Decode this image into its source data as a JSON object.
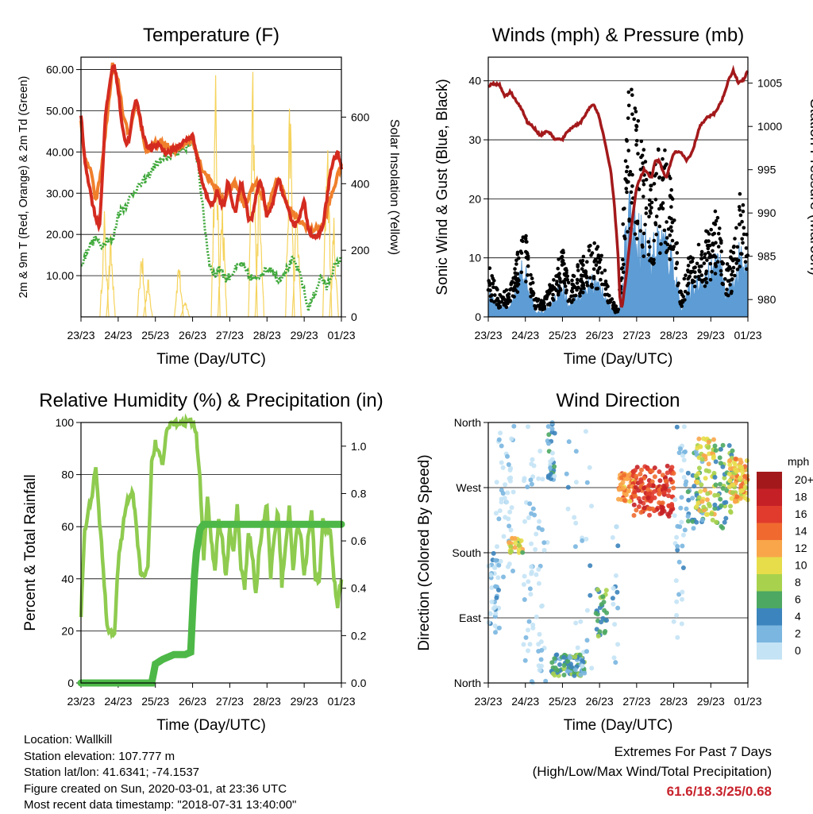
{
  "chart_data": [
    {
      "type": "line",
      "title": "Temperature (F)",
      "xlabel": "Time (Day/UTC)",
      "ylabel": "2m & 9m T (Red, Orange) & 2m Td (Green)",
      "y2label": "Solar Insolation (Yellow)",
      "x_ticks": [
        "23/23",
        "24/23",
        "25/23",
        "26/23",
        "27/23",
        "28/23",
        "29/23",
        "01/23"
      ],
      "ylim": [
        0,
        63
      ],
      "y_ticks": [
        "10.00",
        "20.00",
        "30.00",
        "40.00",
        "50.00",
        "60.00"
      ],
      "y_tick_values": [
        10,
        20,
        30,
        40,
        50,
        60
      ],
      "y2lim": [
        0,
        780
      ],
      "y2_ticks": [
        "0",
        "200",
        "400",
        "600"
      ],
      "y2_tick_values": [
        0,
        200,
        400,
        600
      ],
      "grid": true,
      "colors": {
        "t2m": "#d42b20",
        "t9m": "#f07f2c",
        "td": "#3ea83a",
        "solar": "#f5d35c"
      },
      "series": [
        {
          "key": "t9m",
          "x": [
            0,
            0.1,
            0.25,
            0.4,
            0.55,
            0.7,
            0.85,
            1.0,
            1.15,
            1.3,
            1.5,
            1.75,
            2.0,
            2.25,
            2.5,
            2.75,
            3.0,
            3.25,
            3.5,
            3.65,
            3.85,
            4.1,
            4.4,
            4.7,
            5.0,
            5.3,
            5.6,
            5.9,
            6.2,
            6.5,
            6.75,
            7.0
          ],
          "values": [
            48,
            38,
            36,
            28,
            36,
            48,
            61,
            57,
            48,
            44,
            52,
            40,
            42,
            42,
            40,
            42,
            43,
            36,
            33,
            31,
            28,
            33,
            27,
            33,
            26,
            34,
            26,
            23,
            21,
            22,
            30,
            37
          ]
        },
        {
          "key": "t2m",
          "x": [
            0,
            0.1,
            0.2,
            0.3,
            0.4,
            0.5,
            0.55,
            0.65,
            0.75,
            0.85,
            0.92,
            1.0,
            1.1,
            1.2,
            1.3,
            1.4,
            1.5,
            1.65,
            1.8,
            1.95,
            2.1,
            2.25,
            2.4,
            2.55,
            2.7,
            2.85,
            3.0,
            3.1,
            3.25,
            3.35,
            3.45,
            3.55,
            3.65,
            3.75,
            3.85,
            3.95,
            4.05,
            4.15,
            4.3,
            4.4,
            4.5,
            4.6,
            4.7,
            4.8,
            4.9,
            5.0,
            5.1,
            5.2,
            5.3,
            5.45,
            5.6,
            5.75,
            5.9,
            6.0,
            6.1,
            6.2,
            6.35,
            6.5,
            6.6,
            6.7,
            6.8,
            6.9,
            7.0
          ],
          "values": [
            49,
            38,
            33,
            28,
            24,
            22,
            30,
            48,
            55,
            61,
            60,
            55,
            47,
            42,
            43,
            50,
            53,
            45,
            41,
            41,
            42,
            40,
            40,
            41,
            42,
            43,
            44,
            40,
            33,
            30,
            28,
            27,
            31,
            28,
            27,
            33,
            28,
            25,
            33,
            29,
            24,
            24,
            29,
            33,
            30,
            24,
            26,
            29,
            34,
            29,
            25,
            22,
            25,
            28,
            22,
            20,
            19,
            22,
            28,
            35,
            38,
            40,
            36
          ]
        },
        {
          "key": "td",
          "x": [
            0,
            0.2,
            0.4,
            0.55,
            0.7,
            0.85,
            1.0,
            1.2,
            1.4,
            1.6,
            1.8,
            2.0,
            2.2,
            2.4,
            2.6,
            2.8,
            3.0,
            3.15,
            3.3,
            3.45,
            3.6,
            3.75,
            3.9,
            4.1,
            4.3,
            4.5,
            4.7,
            4.9,
            5.1,
            5.3,
            5.5,
            5.7,
            5.9,
            6.1,
            6.3,
            6.45,
            6.6,
            6.8,
            7.0
          ],
          "values": [
            12,
            17,
            19,
            17,
            19,
            18,
            25,
            27,
            30,
            32,
            34,
            37,
            38,
            39,
            40,
            41,
            43,
            37,
            24,
            13,
            10,
            12,
            9,
            11,
            13,
            10,
            9,
            11,
            12,
            9,
            11,
            14,
            10,
            2,
            6,
            10,
            7,
            12,
            14
          ]
        }
      ],
      "solar_peaks": [
        {
          "x": 0.63,
          "v": 330
        },
        {
          "x": 0.8,
          "v": 255
        },
        {
          "x": 1.63,
          "v": 235
        },
        {
          "x": 1.8,
          "v": 130
        },
        {
          "x": 2.63,
          "v": 195
        },
        {
          "x": 2.8,
          "v": 60
        },
        {
          "x": 3.62,
          "v": 750
        },
        {
          "x": 3.8,
          "v": 400
        },
        {
          "x": 4.62,
          "v": 770
        },
        {
          "x": 4.8,
          "v": 500
        },
        {
          "x": 5.62,
          "v": 740
        },
        {
          "x": 5.8,
          "v": 380
        },
        {
          "x": 6.62,
          "v": 650
        },
        {
          "x": 6.8,
          "v": 320
        }
      ]
    },
    {
      "type": "line",
      "title": "Winds (mph) & Pressure (mb)",
      "xlabel": "Time (Day/UTC)",
      "ylabel": "Sonic Wind & Gust (Blue, Black)",
      "y2label": "Station Pressure (Maroon)",
      "x_ticks": [
        "23/23",
        "24/23",
        "25/23",
        "26/23",
        "27/23",
        "28/23",
        "29/23",
        "01/23"
      ],
      "ylim": [
        0,
        44
      ],
      "y_ticks": [
        "0",
        "10",
        "20",
        "30",
        "40"
      ],
      "y_tick_values": [
        0,
        10,
        20,
        30,
        40
      ],
      "y2lim": [
        978,
        1008
      ],
      "y2_ticks": [
        "980",
        "985",
        "990",
        "995",
        "1000",
        "1005"
      ],
      "y2_tick_values": [
        980,
        985,
        990,
        995,
        1000,
        1005
      ],
      "grid": true,
      "colors": {
        "wind": "#5d9cd5",
        "gust": "#000000",
        "pressure": "#a3191b"
      },
      "gust_envelope": {
        "x": [
          0,
          0.3,
          0.6,
          0.8,
          0.95,
          1.1,
          1.3,
          1.5,
          1.8,
          2.0,
          2.2,
          2.5,
          2.8,
          3.1,
          3.3,
          3.5,
          3.6,
          3.7,
          3.8,
          4.0,
          4.2,
          4.4,
          4.6,
          4.8,
          5.0,
          5.2,
          5.4,
          5.6,
          5.8,
          6.0,
          6.2,
          6.4,
          6.6,
          6.8,
          7.0
        ],
        "values": [
          9,
          4,
          5,
          12,
          18,
          9,
          3,
          3,
          8,
          12,
          6,
          10,
          14,
          10,
          4,
          1,
          12,
          30,
          40,
          36,
          28,
          24,
          30,
          28,
          20,
          4,
          10,
          12,
          14,
          16,
          20,
          9,
          12,
          22,
          14
        ]
      },
      "wind_envelope": {
        "x": [
          0,
          0.3,
          0.6,
          0.8,
          0.95,
          1.1,
          1.3,
          1.5,
          1.8,
          2.0,
          2.2,
          2.5,
          2.8,
          3.1,
          3.3,
          3.5,
          3.6,
          3.7,
          3.8,
          4.0,
          4.2,
          4.4,
          4.6,
          4.8,
          5.0,
          5.2,
          5.4,
          5.6,
          5.8,
          6.0,
          6.2,
          6.4,
          6.6,
          6.8,
          7.0
        ],
        "values": [
          5,
          2,
          2,
          7,
          12,
          5,
          1,
          1,
          4,
          7,
          3,
          5,
          8,
          6,
          2,
          0.5,
          7,
          18,
          25,
          20,
          17,
          14,
          18,
          16,
          12,
          2,
          6,
          7,
          9,
          10,
          13,
          5,
          8,
          14,
          8
        ]
      },
      "pressure": {
        "x": [
          0,
          0.1,
          0.3,
          0.45,
          0.6,
          0.75,
          0.9,
          1.05,
          1.2,
          1.4,
          1.6,
          1.8,
          2.0,
          2.15,
          2.3,
          2.5,
          2.7,
          2.85,
          3.0,
          3.15,
          3.3,
          3.4,
          3.5,
          3.55,
          3.6,
          3.7,
          3.85,
          4.0,
          4.2,
          4.4,
          4.5,
          4.6,
          4.8,
          5.0,
          5.2,
          5.35,
          5.5,
          5.7,
          5.9,
          6.1,
          6.3,
          6.45,
          6.6,
          6.75,
          6.9,
          7.0
        ],
        "values": [
          1004.5,
          1005,
          1004.8,
          1003.5,
          1004,
          1003,
          1002,
          1000.5,
          1000,
          999,
          999.5,
          998.5,
          998.5,
          999.5,
          1000,
          1000.5,
          1002,
          1002.5,
          1001,
          998,
          995,
          991,
          985,
          980,
          979,
          982,
          988,
          993,
          995,
          994,
          996,
          996,
          994,
          997,
          997,
          996,
          997,
          1000,
          1001,
          1001.5,
          1003,
          1005,
          1006.5,
          1005,
          1005.5,
          1006.5
        ]
      }
    },
    {
      "type": "line",
      "title": "Relative Humidity (%) & Precipitation (in)",
      "xlabel": "Time (Day/UTC)",
      "ylabel": "Percent & Total Rainfall",
      "x_ticks": [
        "23/23",
        "24/23",
        "25/23",
        "26/23",
        "27/23",
        "28/23",
        "29/23",
        "01/23"
      ],
      "ylim": [
        0,
        100
      ],
      "y_ticks": [
        "0",
        "20",
        "40",
        "60",
        "80",
        "100"
      ],
      "y_tick_values": [
        0,
        20,
        40,
        60,
        80,
        100
      ],
      "y2lim": [
        0,
        1.1
      ],
      "y2_ticks": [
        "0.0",
        "0.2",
        "0.4",
        "0.6",
        "0.8",
        "1.0"
      ],
      "y2_tick_values": [
        0,
        0.2,
        0.4,
        0.6,
        0.8,
        1.0
      ],
      "grid": true,
      "colors": {
        "rh": "#8ecb4f",
        "precip": "#4db847"
      },
      "rh": {
        "x": [
          0,
          0.1,
          0.2,
          0.3,
          0.4,
          0.5,
          0.6,
          0.7,
          0.8,
          0.9,
          1.0,
          1.1,
          1.2,
          1.3,
          1.4,
          1.5,
          1.6,
          1.7,
          1.8,
          1.9,
          2.0,
          2.1,
          2.2,
          2.3,
          2.4,
          2.5,
          2.6,
          2.7,
          2.8,
          2.9,
          3.0,
          3.1,
          3.2,
          3.3,
          3.4,
          3.5,
          3.6,
          3.7,
          3.8,
          3.9,
          4.0,
          4.1,
          4.2,
          4.3,
          4.4,
          4.5,
          4.6,
          4.7,
          4.8,
          4.9,
          5.0,
          5.1,
          5.2,
          5.3,
          5.4,
          5.5,
          5.6,
          5.7,
          5.8,
          5.9,
          6.0,
          6.1,
          6.2,
          6.3,
          6.4,
          6.5,
          6.6,
          6.7,
          6.8,
          6.9,
          7.0
        ],
        "values": [
          26,
          58,
          66,
          72,
          84,
          62,
          44,
          22,
          20,
          18,
          46,
          56,
          68,
          72,
          72,
          58,
          42,
          40,
          44,
          84,
          92,
          88,
          84,
          98,
          100,
          100,
          100,
          100,
          100,
          100,
          100,
          95,
          78,
          48,
          70,
          55,
          42,
          62,
          55,
          40,
          60,
          50,
          68,
          45,
          35,
          58,
          50,
          34,
          52,
          62,
          68,
          40,
          58,
          66,
          38,
          52,
          68,
          42,
          60,
          58,
          40,
          55,
          66,
          40,
          38,
          62,
          58,
          60,
          40,
          30,
          40
        ]
      },
      "precip": {
        "x": [
          0,
          1.0,
          1.9,
          2.0,
          2.2,
          2.5,
          2.8,
          2.95,
          3.0,
          3.05,
          3.1,
          3.2,
          3.3,
          7.0
        ],
        "values": [
          0,
          0,
          0,
          0.08,
          0.1,
          0.12,
          0.12,
          0.13,
          0.3,
          0.45,
          0.55,
          0.65,
          0.67,
          0.67
        ]
      }
    },
    {
      "type": "scatter",
      "title": "Wind Direction",
      "xlabel": "Time (Day/UTC)",
      "ylabel": "Direction (Colored By Speed)",
      "x_ticks": [
        "23/23",
        "24/23",
        "25/23",
        "26/23",
        "27/23",
        "28/23",
        "29/23",
        "01/23"
      ],
      "y_ticks": [
        "North",
        "East",
        "South",
        "West",
        "North"
      ],
      "y_tick_values": [
        0,
        90,
        180,
        270,
        360
      ],
      "ylim": [
        0,
        360
      ],
      "grid": true,
      "legend": {
        "title": "mph",
        "labels": [
          "20+",
          "18",
          "16",
          "14",
          "12",
          "10",
          "8",
          "6",
          "4",
          "2",
          "0"
        ],
        "colors": [
          "#a3191b",
          "#c52025",
          "#e03b2c",
          "#f06a2f",
          "#f9a64a",
          "#e7dd4a",
          "#a8d24d",
          "#4da862",
          "#3c84bd",
          "#7ab6e0",
          "#c4e3f5"
        ],
        "placement": "right"
      },
      "clusters": [
        {
          "x0": 0.0,
          "x1": 0.3,
          "d0": 70,
          "d1": 180,
          "speed": 2,
          "n": 40
        },
        {
          "x0": 0.2,
          "x1": 0.7,
          "d0": 130,
          "d1": 360,
          "speed": 1,
          "n": 45
        },
        {
          "x0": 0.55,
          "x1": 0.95,
          "d0": 180,
          "d1": 200,
          "speed": 10,
          "n": 25
        },
        {
          "x0": 0.9,
          "x1": 1.6,
          "d0": 0,
          "d1": 360,
          "speed": 1,
          "n": 70
        },
        {
          "x0": 1.6,
          "x1": 1.8,
          "d0": 280,
          "d1": 360,
          "speed": 4,
          "n": 30
        },
        {
          "x0": 1.7,
          "x1": 2.6,
          "d0": 10,
          "d1": 40,
          "speed": 6,
          "n": 90
        },
        {
          "x0": 2.1,
          "x1": 2.8,
          "d0": 0,
          "d1": 360,
          "speed": 2,
          "n": 30
        },
        {
          "x0": 2.9,
          "x1": 3.2,
          "d0": 60,
          "d1": 130,
          "speed": 7,
          "n": 30
        },
        {
          "x0": 3.35,
          "x1": 3.5,
          "d0": 10,
          "d1": 250,
          "speed": 2,
          "n": 15
        },
        {
          "x0": 3.5,
          "x1": 4.0,
          "d0": 250,
          "d1": 290,
          "speed": 14,
          "n": 60
        },
        {
          "x0": 3.9,
          "x1": 5.0,
          "d0": 230,
          "d1": 300,
          "speed": 17,
          "n": 140
        },
        {
          "x0": 5.0,
          "x1": 5.3,
          "d0": 40,
          "d1": 360,
          "speed": 2,
          "n": 35
        },
        {
          "x0": 5.3,
          "x1": 5.8,
          "d0": 200,
          "d1": 320,
          "speed": 5,
          "n": 40
        },
        {
          "x0": 5.6,
          "x1": 6.1,
          "d0": 220,
          "d1": 340,
          "speed": 11,
          "n": 70
        },
        {
          "x0": 6.1,
          "x1": 6.6,
          "d0": 210,
          "d1": 330,
          "speed": 7,
          "n": 50
        },
        {
          "x0": 6.5,
          "x1": 7.0,
          "d0": 250,
          "d1": 310,
          "speed": 12,
          "n": 80
        }
      ]
    }
  ],
  "info": {
    "location": "Location: Wallkill",
    "elevation": "Station elevation: 107.777 m",
    "latlon": "Station lat/lon: 41.6341; -74.1537",
    "created": "Figure created on Sun, 2020-03-01, at 23:36 UTC",
    "recent": "Most recent data timestamp: \"2018-07-31 13:40:00\""
  },
  "extremes": {
    "title": "Extremes For Past 7 Days",
    "subtitle": "(High/Low/Max Wind/Total Precipitation)",
    "values": "61.6/18.3/25/0.68"
  }
}
